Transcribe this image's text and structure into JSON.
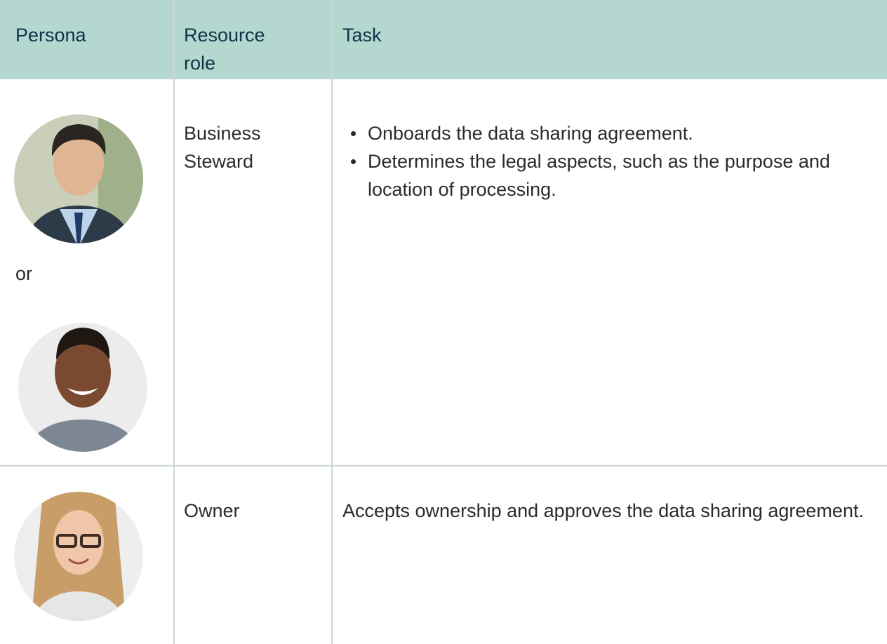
{
  "table": {
    "header": [
      "Persona",
      "Resource role",
      "Task"
    ],
    "rows": [
      {
        "persona_text": "or",
        "role": "Business Steward",
        "task_items": [
          "Onboards the data sharing agreement.",
          "Determines the legal aspects, such as the purpose and location of processing."
        ]
      },
      {
        "role": "Owner",
        "task": "Accepts ownership and approves the data sharing agreement."
      }
    ]
  }
}
